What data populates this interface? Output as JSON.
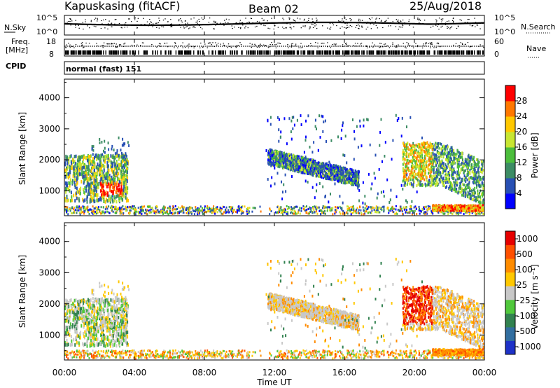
{
  "header": {
    "station": "Kapuskasing (fitACF)",
    "beam": "Beam 02",
    "date": "25/Aug/2018"
  },
  "top_panels": {
    "nsky_label": "N.Sky",
    "nsky_ticks": [
      "10^5",
      "10^0"
    ],
    "nsearch_label": "N.Search",
    "nsearch_ticks": [
      "10^5",
      "10^0"
    ],
    "freq_label_line1": "Freq.",
    "freq_label_line2": "[MHz]",
    "freq_ticks": [
      "18",
      "8"
    ],
    "nave_label": "Nave",
    "nave_ticks": [
      "60",
      "0"
    ],
    "cpid_label": "CPID",
    "cpid_value": "normal (fast) 151"
  },
  "colors": {
    "power_scale": [
      "#0000ff",
      "#2850b4",
      "#3c8c64",
      "#4cbe3c",
      "#c8e632",
      "#ffc800",
      "#ff7800",
      "#ff0000"
    ],
    "velocity_scale": [
      "#1e32c8",
      "#326ea0",
      "#328250",
      "#50c83c",
      "#c8c8c8",
      "#ffc800",
      "#ff8c00",
      "#ff5000",
      "#e60000"
    ]
  },
  "chart_data": [
    {
      "type": "heatmap",
      "name": "power-panel",
      "ylabel": "Slant Range [km]",
      "yticks": [
        "1000",
        "2000",
        "3000",
        "4000"
      ],
      "ylim": [
        200,
        4600
      ],
      "xlim": [
        0,
        24
      ],
      "colorbar_label": "Power [dB]",
      "colorbar_ticks": [
        "4",
        "8",
        "12",
        "16",
        "20",
        "24",
        "28"
      ],
      "colorbar_range": [
        0,
        32
      ]
    },
    {
      "type": "heatmap",
      "name": "velocity-panel",
      "ylabel": "Slant Range [km]",
      "yticks": [
        "1000",
        "2000",
        "3000",
        "4000"
      ],
      "ylim": [
        200,
        4600
      ],
      "xlim": [
        0,
        24
      ],
      "colorbar_label": "Velocity [m s⁻¹]",
      "colorbar_ticks": [
        "1000",
        "500",
        "100",
        "25",
        "-25",
        "-100",
        "-500",
        "-1000"
      ]
    }
  ],
  "xaxis": {
    "label": "Time UT",
    "ticks": [
      "00:00",
      "04:00",
      "08:00",
      "12:00",
      "16:00",
      "20:00",
      "00:00"
    ]
  }
}
